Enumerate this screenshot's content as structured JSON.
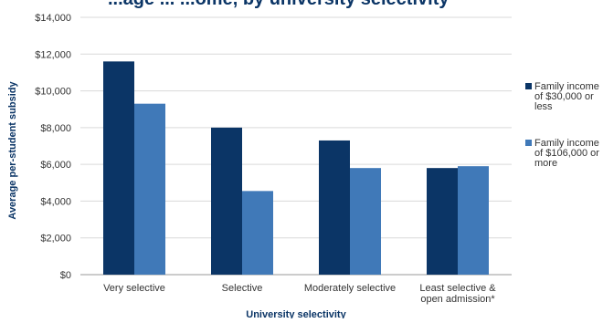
{
  "chart_data": {
    "type": "bar",
    "title": "...age ... ...ome, by university selectivity",
    "xlabel": "University selectivity",
    "ylabel": "Average per-student subsidy",
    "ylim": [
      0,
      14000
    ],
    "y_ticks": [
      "$0",
      "$2,000",
      "$4,000",
      "$6,000",
      "$8,000",
      "$10,000",
      "$12,000",
      "$14,000"
    ],
    "categories": [
      [
        "Very selective"
      ],
      [
        "Selective"
      ],
      [
        "Moderately selective"
      ],
      [
        "Least selective &",
        "open admission*"
      ]
    ],
    "series": [
      {
        "name": [
          "Family income",
          "of $30,000 or",
          "less"
        ],
        "color": "#0b3566",
        "values": [
          11600,
          8000,
          7300,
          5800
        ]
      },
      {
        "name": [
          "Family income",
          "of $106,000 or",
          "more"
        ],
        "color": "#4079b8",
        "values": [
          9300,
          4550,
          5800,
          5900
        ]
      }
    ],
    "grid": "horizontal",
    "legend": "right"
  }
}
